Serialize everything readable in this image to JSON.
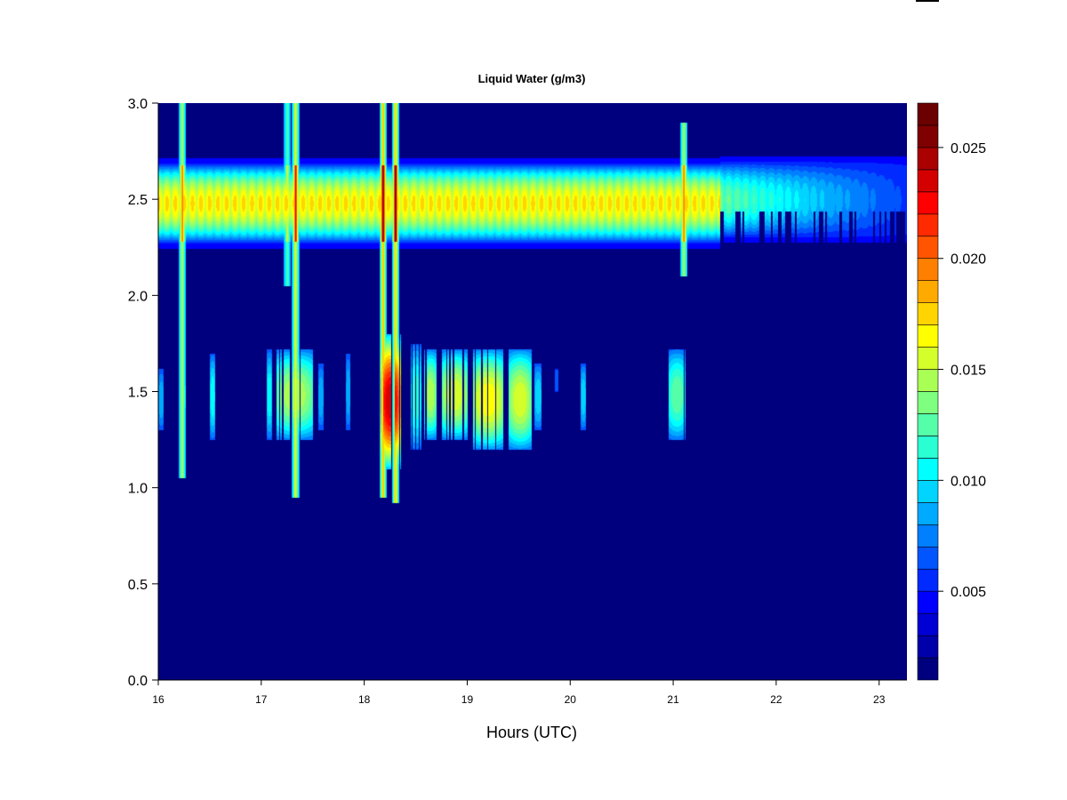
{
  "chart_data": {
    "type": "heatmap",
    "title": "Liquid Water (g/m3)",
    "xlabel": "Hours (UTC)",
    "ylabel": "",
    "xlim": [
      16,
      23.27
    ],
    "ylim": [
      0,
      3
    ],
    "x_ticks": [
      "16",
      "17",
      "18",
      "19",
      "20",
      "21",
      "22",
      "23"
    ],
    "y_ticks": [
      "0.0",
      "0.5",
      "1.0",
      "1.5",
      "2.0",
      "2.5",
      "3.0"
    ],
    "colorbar": {
      "range": [
        0.001,
        0.027
      ],
      "ticks": [
        "0.005",
        "0.010",
        "0.015",
        "0.020",
        "0.025"
      ],
      "levels": 26,
      "colors": [
        "#00007F",
        "#0000AA",
        "#0000D4",
        "#0000FF",
        "#002AFF",
        "#0055FF",
        "#007FFF",
        "#00AAFF",
        "#00D4FF",
        "#00FFFF",
        "#2AFFD4",
        "#55FFAA",
        "#7FFF7F",
        "#AAFF55",
        "#D4FF2A",
        "#FFFF00",
        "#FFD400",
        "#FFAA00",
        "#FF7F00",
        "#FF5500",
        "#FF2A00",
        "#FF0000",
        "#D40000",
        "#AA0000",
        "#7F0000",
        "#6B0000"
      ]
    },
    "background_value": 0.001,
    "layers": [
      {
        "name": "upper cloud layer",
        "y_center": 2.48,
        "y_half_width": 0.21,
        "x_range": [
          16,
          21.45
        ],
        "peak": 0.0175
      },
      {
        "name": "upper cloud layer (thinning)",
        "y_center": 2.5,
        "y_half_width": 0.2,
        "x_range": [
          21.45,
          23.27
        ],
        "peak": 0.0135
      }
    ],
    "features": [
      {
        "x": 16.23,
        "y_range": [
          1.05,
          3.0
        ],
        "peak": 0.021
      },
      {
        "x": 17.25,
        "y_range": [
          2.05,
          3.0
        ],
        "peak": 0.016
      },
      {
        "x": 17.33,
        "y_range": [
          0.95,
          3.0
        ],
        "peak": 0.024
      },
      {
        "x": 18.18,
        "y_range": [
          0.95,
          3.0
        ],
        "peak": 0.027
      },
      {
        "x": 18.3,
        "y_range": [
          0.92,
          3.0
        ],
        "peak": 0.027
      },
      {
        "x": 21.1,
        "y_range": [
          2.1,
          2.9
        ],
        "peak": 0.021
      }
    ],
    "lower_cells": [
      {
        "x0": 16.0,
        "x1": 16.05,
        "y0": 1.3,
        "y1": 1.62,
        "peak": 0.009
      },
      {
        "x0": 16.2,
        "x1": 16.26,
        "y0": 1.2,
        "y1": 1.75,
        "peak": 0.012
      },
      {
        "x0": 16.5,
        "x1": 16.55,
        "y0": 1.25,
        "y1": 1.7,
        "peak": 0.011
      },
      {
        "x0": 17.05,
        "x1": 17.1,
        "y0": 1.25,
        "y1": 1.72,
        "peak": 0.011
      },
      {
        "x0": 17.14,
        "x1": 17.5,
        "y0": 1.25,
        "y1": 1.72,
        "peak": 0.015
      },
      {
        "x0": 17.55,
        "x1": 17.6,
        "y0": 1.3,
        "y1": 1.65,
        "peak": 0.009
      },
      {
        "x0": 17.82,
        "x1": 17.86,
        "y0": 1.3,
        "y1": 1.7,
        "peak": 0.009
      },
      {
        "x0": 18.15,
        "x1": 18.35,
        "y0": 1.1,
        "y1": 1.8,
        "peak": 0.024
      },
      {
        "x0": 18.45,
        "x1": 18.55,
        "y0": 1.2,
        "y1": 1.75,
        "peak": 0.012
      },
      {
        "x0": 18.58,
        "x1": 18.7,
        "y0": 1.25,
        "y1": 1.72,
        "peak": 0.015
      },
      {
        "x0": 18.75,
        "x1": 19.0,
        "y0": 1.25,
        "y1": 1.72,
        "peak": 0.016
      },
      {
        "x0": 19.05,
        "x1": 19.35,
        "y0": 1.2,
        "y1": 1.72,
        "peak": 0.017
      },
      {
        "x0": 19.4,
        "x1": 19.62,
        "y0": 1.2,
        "y1": 1.72,
        "peak": 0.016
      },
      {
        "x0": 19.65,
        "x1": 19.72,
        "y0": 1.3,
        "y1": 1.65,
        "peak": 0.01
      },
      {
        "x0": 19.85,
        "x1": 19.88,
        "y0": 1.5,
        "y1": 1.62,
        "peak": 0.007
      },
      {
        "x0": 20.1,
        "x1": 20.15,
        "y0": 1.3,
        "y1": 1.65,
        "peak": 0.01
      },
      {
        "x0": 20.95,
        "x1": 21.12,
        "y0": 1.25,
        "y1": 1.72,
        "peak": 0.013
      }
    ]
  }
}
